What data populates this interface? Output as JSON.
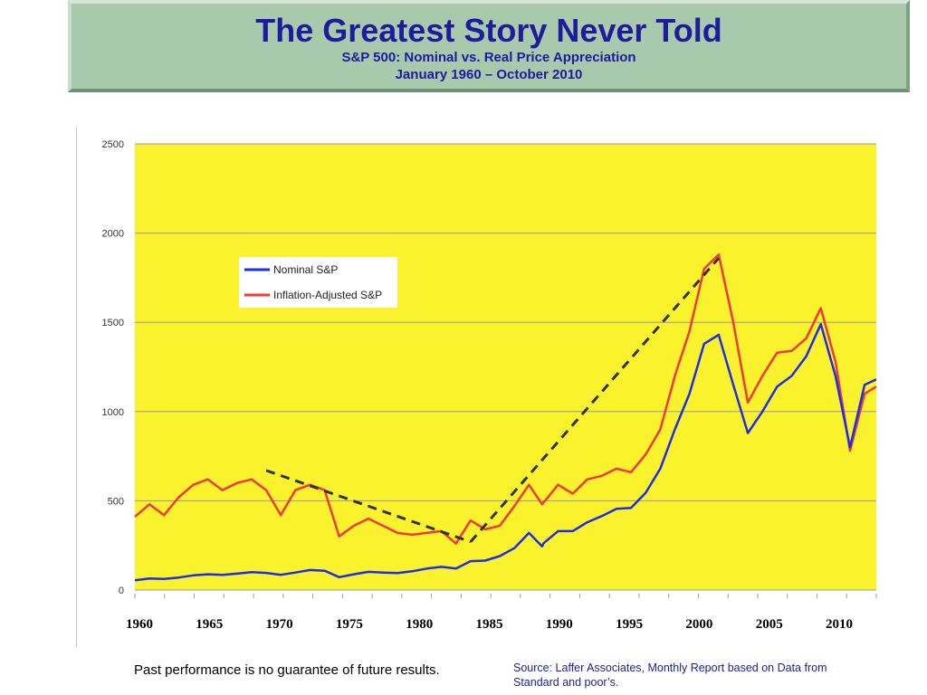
{
  "header": {
    "title": "The Greatest Story Never Told",
    "subtitle_1": "S&P 500: Nominal vs. Real Price Appreciation",
    "subtitle_2": "January 1960 – October 2010"
  },
  "footer": {
    "disclaimer": "Past performance is no guarantee of future results.",
    "source": "Source: Laffer Associates, Monthly Report based on Data from Standard and poor’s."
  },
  "colors": {
    "plot_background": "#fbf22e",
    "nominal": "#1f2ee6",
    "real": "#ee3a3a",
    "trend": "#333333"
  },
  "chart_data": {
    "type": "line",
    "xlim": [
      1960,
      2010.8
    ],
    "ylim": [
      0,
      2500
    ],
    "y_ticks": [
      0,
      500,
      1000,
      1500,
      2000,
      2500
    ],
    "x_tick_labels": [
      "1960",
      "1965",
      "1970",
      "1975",
      "1980",
      "1985",
      "1990",
      "1995",
      "2000",
      "2005",
      "2010"
    ],
    "grid": true,
    "legend_position": "top-left",
    "series": [
      {
        "name": "Nominal S&P",
        "color": "#1f2ee6",
        "points": [
          [
            1960,
            55
          ],
          [
            1961,
            65
          ],
          [
            1962,
            62
          ],
          [
            1963,
            70
          ],
          [
            1964,
            82
          ],
          [
            1965,
            88
          ],
          [
            1966,
            85
          ],
          [
            1967,
            92
          ],
          [
            1968,
            100
          ],
          [
            1969,
            96
          ],
          [
            1970,
            85
          ],
          [
            1971,
            98
          ],
          [
            1972,
            112
          ],
          [
            1973,
            108
          ],
          [
            1974,
            72
          ],
          [
            1975,
            88
          ],
          [
            1976,
            102
          ],
          [
            1977,
            98
          ],
          [
            1978,
            95
          ],
          [
            1979,
            105
          ],
          [
            1980,
            120
          ],
          [
            1981,
            130
          ],
          [
            1982,
            120
          ],
          [
            1983,
            162
          ],
          [
            1984,
            165
          ],
          [
            1985,
            190
          ],
          [
            1986,
            235
          ],
          [
            1987,
            320
          ],
          [
            1987.9,
            245
          ],
          [
            1988,
            262
          ],
          [
            1989,
            330
          ],
          [
            1990,
            330
          ],
          [
            1991,
            380
          ],
          [
            1992,
            415
          ],
          [
            1993,
            455
          ],
          [
            1994,
            460
          ],
          [
            1995,
            545
          ],
          [
            1996,
            680
          ],
          [
            1997,
            900
          ],
          [
            1998,
            1100
          ],
          [
            1999,
            1380
          ],
          [
            2000,
            1430
          ],
          [
            2001,
            1150
          ],
          [
            2002,
            880
          ],
          [
            2003,
            1000
          ],
          [
            2004,
            1140
          ],
          [
            2005,
            1200
          ],
          [
            2006,
            1310
          ],
          [
            2007,
            1490
          ],
          [
            2008,
            1200
          ],
          [
            2009,
            800
          ],
          [
            2010,
            1150
          ],
          [
            2010.8,
            1180
          ]
        ]
      },
      {
        "name": "Inflation-Adjusted S&P",
        "color": "#ee3a3a",
        "points": [
          [
            1960,
            410
          ],
          [
            1961,
            480
          ],
          [
            1962,
            420
          ],
          [
            1963,
            520
          ],
          [
            1964,
            590
          ],
          [
            1965,
            620
          ],
          [
            1966,
            560
          ],
          [
            1967,
            600
          ],
          [
            1968,
            620
          ],
          [
            1969,
            560
          ],
          [
            1970,
            420
          ],
          [
            1971,
            560
          ],
          [
            1972,
            590
          ],
          [
            1973,
            560
          ],
          [
            1974,
            300
          ],
          [
            1975,
            360
          ],
          [
            1976,
            400
          ],
          [
            1977,
            360
          ],
          [
            1978,
            320
          ],
          [
            1979,
            310
          ],
          [
            1980,
            320
          ],
          [
            1981,
            330
          ],
          [
            1982,
            260
          ],
          [
            1983,
            390
          ],
          [
            1984,
            340
          ],
          [
            1985,
            360
          ],
          [
            1986,
            470
          ],
          [
            1987,
            590
          ],
          [
            1987.9,
            480
          ],
          [
            1988,
            490
          ],
          [
            1989,
            590
          ],
          [
            1990,
            540
          ],
          [
            1991,
            620
          ],
          [
            1992,
            640
          ],
          [
            1993,
            680
          ],
          [
            1994,
            660
          ],
          [
            1995,
            760
          ],
          [
            1996,
            900
          ],
          [
            1997,
            1200
          ],
          [
            1998,
            1450
          ],
          [
            1999,
            1800
          ],
          [
            2000,
            1880
          ],
          [
            2001,
            1500
          ],
          [
            2002,
            1050
          ],
          [
            2003,
            1200
          ],
          [
            2004,
            1330
          ],
          [
            2005,
            1340
          ],
          [
            2006,
            1410
          ],
          [
            2007,
            1580
          ],
          [
            2008,
            1280
          ],
          [
            2009,
            780
          ],
          [
            2010,
            1100
          ],
          [
            2010.8,
            1140
          ]
        ]
      }
    ],
    "trend_lines": [
      {
        "from": [
          1969,
          670
        ],
        "to": [
          1983,
          270
        ]
      },
      {
        "from": [
          1983,
          270
        ],
        "to": [
          2000,
          1860
        ]
      }
    ]
  }
}
